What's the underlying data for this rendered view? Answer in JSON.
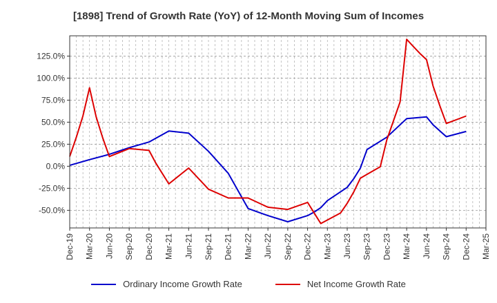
{
  "chart_data": {
    "type": "line",
    "title": "[1898]  Trend of Growth Rate (YoY) of 12-Month Moving Sum of Incomes",
    "xlabel": "",
    "ylabel": "",
    "x_ticks": [
      "Dec-19",
      "Mar-20",
      "Jun-20",
      "Sep-20",
      "Dec-20",
      "Mar-21",
      "Jun-21",
      "Sep-21",
      "Dec-21",
      "Mar-22",
      "Jun-22",
      "Sep-22",
      "Dec-22",
      "Mar-23",
      "Jun-23",
      "Sep-23",
      "Dec-23",
      "Mar-24",
      "Jun-24",
      "Sep-24",
      "Dec-24",
      "Mar-25"
    ],
    "y_ticks": [
      -50,
      -25,
      0,
      25,
      50,
      75,
      100,
      125
    ],
    "y_tick_labels": [
      "-50.0%",
      "-25.0%",
      "0.0%",
      "25.0%",
      "50.0%",
      "75.0%",
      "100.0%",
      "125.0%"
    ],
    "ylim": [
      -70,
      148
    ],
    "grid": true,
    "legend_position": "bottom",
    "series": [
      {
        "name": "Ordinary Income Growth Rate",
        "color": "#0000cc",
        "points": [
          [
            0,
            1
          ],
          [
            3,
            7.5
          ],
          [
            6,
            13.5
          ],
          [
            9,
            21
          ],
          [
            12,
            27.5
          ],
          [
            15,
            40
          ],
          [
            18,
            37.5
          ],
          [
            21,
            17
          ],
          [
            24,
            -8
          ],
          [
            27,
            -48
          ],
          [
            30,
            -56
          ],
          [
            33,
            -63
          ],
          [
            36,
            -56
          ],
          [
            37,
            -52
          ],
          [
            38,
            -47
          ],
          [
            39,
            -39
          ],
          [
            42,
            -24
          ],
          [
            43,
            -14
          ],
          [
            44,
            -2
          ],
          [
            45,
            19
          ],
          [
            48,
            33
          ],
          [
            51,
            54
          ],
          [
            54,
            56
          ],
          [
            55,
            47
          ],
          [
            57,
            33.5
          ],
          [
            60,
            39.5
          ]
        ]
      },
      {
        "name": "Net Income Growth Rate",
        "color": "#dd0000",
        "points": [
          [
            0,
            11
          ],
          [
            1,
            33
          ],
          [
            2,
            57
          ],
          [
            3,
            89
          ],
          [
            4,
            56
          ],
          [
            5,
            32
          ],
          [
            6,
            11
          ],
          [
            9,
            20
          ],
          [
            12,
            18
          ],
          [
            13,
            4
          ],
          [
            14,
            -8
          ],
          [
            15,
            -20
          ],
          [
            18,
            -2
          ],
          [
            21,
            -26
          ],
          [
            24,
            -36
          ],
          [
            27,
            -36
          ],
          [
            30,
            -46.5
          ],
          [
            33,
            -49
          ],
          [
            36,
            -41
          ],
          [
            37,
            -53
          ],
          [
            38,
            -65
          ],
          [
            41,
            -53
          ],
          [
            42,
            -42
          ],
          [
            43,
            -29
          ],
          [
            44,
            -13.5
          ],
          [
            47,
            -0.5
          ],
          [
            48,
            30
          ],
          [
            50,
            73
          ],
          [
            51,
            144
          ],
          [
            52,
            136
          ],
          [
            53,
            128
          ],
          [
            54,
            121
          ],
          [
            55,
            91
          ],
          [
            56,
            69
          ],
          [
            57,
            48.5
          ],
          [
            60,
            57
          ]
        ]
      }
    ]
  }
}
